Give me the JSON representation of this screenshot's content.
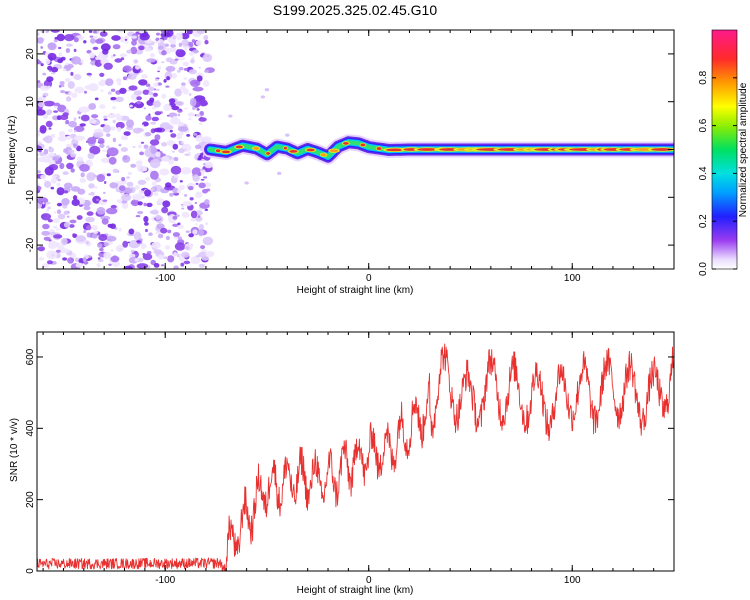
{
  "title": "S199.2025.325.02.45.G10",
  "colors": {
    "signal": "#e8302f",
    "noise": "#7b2fe0",
    "axis": "#000000"
  },
  "chart_data": [
    {
      "type": "heatmap",
      "xlabel": "Height of straight line (km)",
      "ylabel": "Frequency (Hz)",
      "xlim": [
        -163,
        150
      ],
      "ylim": [
        -25,
        25
      ],
      "xticks": [
        -100,
        0,
        100
      ],
      "yticks": [
        -20,
        -10,
        0,
        10,
        20
      ],
      "noise_region_x": [
        -163,
        -78
      ],
      "signal_region_x": [
        -78,
        150
      ],
      "signal_track_x": [
        -78,
        -70,
        -62,
        -55,
        -50,
        -45,
        -40,
        -35,
        -30,
        -25,
        -20,
        -15,
        -10,
        -5,
        0,
        10,
        20,
        40,
        60,
        80,
        100,
        120,
        150
      ],
      "signal_track_freq": [
        0,
        -0.5,
        0.8,
        0.2,
        -1.0,
        0.6,
        0.2,
        -0.8,
        0.1,
        -0.6,
        -1.5,
        0.6,
        1.5,
        1.3,
        0.5,
        -0.1,
        0,
        0,
        0,
        0,
        0,
        0,
        0
      ],
      "colorbar": {
        "label": "Normalized spectral amplitude",
        "ticks": [
          0.0,
          0.2,
          0.4,
          0.6,
          0.8
        ],
        "range": [
          0,
          1
        ]
      }
    },
    {
      "type": "line",
      "xlabel": "Height of straight line (km)",
      "ylabel": "SNR (10 * v/v)",
      "xlim": [
        -163,
        150
      ],
      "ylim": [
        0,
        670
      ],
      "xticks": [
        -100,
        0,
        100
      ],
      "yticks": [
        0,
        200,
        400,
        600
      ],
      "trend_x": [
        -163,
        -72,
        -68,
        -60,
        -50,
        -40,
        -30,
        -20,
        -10,
        0,
        10,
        20,
        30,
        35,
        40,
        50,
        60,
        70,
        80,
        90,
        100,
        110,
        120,
        130,
        140,
        150
      ],
      "trend_y": [
        20,
        22,
        70,
        150,
        240,
        250,
        260,
        250,
        300,
        330,
        340,
        410,
        460,
        540,
        520,
        470,
        520,
        500,
        490,
        470,
        510,
        490,
        520,
        500,
        480,
        560
      ]
    }
  ]
}
